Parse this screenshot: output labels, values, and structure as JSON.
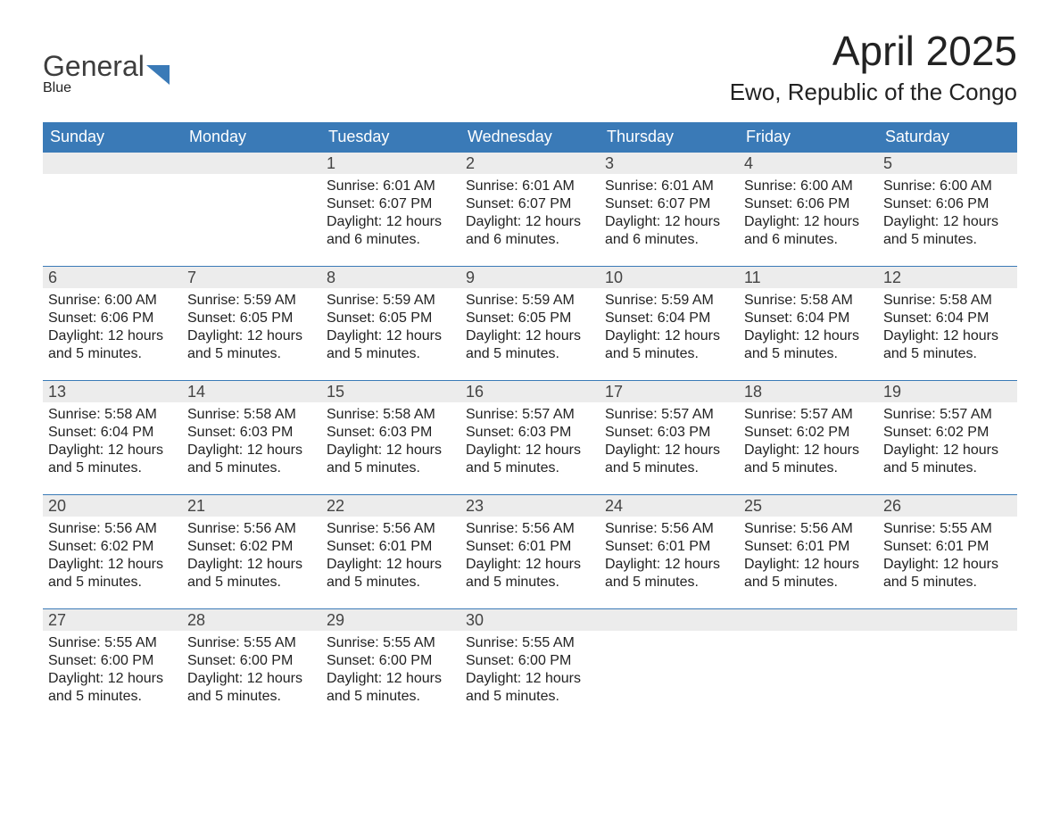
{
  "brand": {
    "name1": "General",
    "name2": "Blue",
    "accent": "#3a7ab7"
  },
  "title": "April 2025",
  "location": "Ewo, Republic of the Congo",
  "colors": {
    "header_bg": "#3a7ab7",
    "header_fg": "#ffffff",
    "daynum_bg": "#ececec",
    "row_border": "#3a7ab7",
    "page_bg": "#ffffff",
    "text": "#222222"
  },
  "typography": {
    "title_fontsize": 46,
    "location_fontsize": 26,
    "dayhdr_fontsize": 18,
    "daynum_fontsize": 18,
    "body_fontsize": 16
  },
  "layout": {
    "columns": 7,
    "rows": 5,
    "first_day_col": 2
  },
  "day_headers": [
    "Sunday",
    "Monday",
    "Tuesday",
    "Wednesday",
    "Thursday",
    "Friday",
    "Saturday"
  ],
  "labels": {
    "sunrise": "Sunrise: ",
    "sunset": "Sunset: ",
    "daylight_prefix": "Daylight: ",
    "daylight_joiner": " and ",
    "daylight_suffix": "."
  },
  "weeks": [
    [
      {
        "n": ""
      },
      {
        "n": ""
      },
      {
        "n": "1",
        "sr": "6:01 AM",
        "ss": "6:07 PM",
        "dh": "12 hours",
        "dm": "6 minutes"
      },
      {
        "n": "2",
        "sr": "6:01 AM",
        "ss": "6:07 PM",
        "dh": "12 hours",
        "dm": "6 minutes"
      },
      {
        "n": "3",
        "sr": "6:01 AM",
        "ss": "6:07 PM",
        "dh": "12 hours",
        "dm": "6 minutes"
      },
      {
        "n": "4",
        "sr": "6:00 AM",
        "ss": "6:06 PM",
        "dh": "12 hours",
        "dm": "6 minutes"
      },
      {
        "n": "5",
        "sr": "6:00 AM",
        "ss": "6:06 PM",
        "dh": "12 hours",
        "dm": "5 minutes"
      }
    ],
    [
      {
        "n": "6",
        "sr": "6:00 AM",
        "ss": "6:06 PM",
        "dh": "12 hours",
        "dm": "5 minutes"
      },
      {
        "n": "7",
        "sr": "5:59 AM",
        "ss": "6:05 PM",
        "dh": "12 hours",
        "dm": "5 minutes"
      },
      {
        "n": "8",
        "sr": "5:59 AM",
        "ss": "6:05 PM",
        "dh": "12 hours",
        "dm": "5 minutes"
      },
      {
        "n": "9",
        "sr": "5:59 AM",
        "ss": "6:05 PM",
        "dh": "12 hours",
        "dm": "5 minutes"
      },
      {
        "n": "10",
        "sr": "5:59 AM",
        "ss": "6:04 PM",
        "dh": "12 hours",
        "dm": "5 minutes"
      },
      {
        "n": "11",
        "sr": "5:58 AM",
        "ss": "6:04 PM",
        "dh": "12 hours",
        "dm": "5 minutes"
      },
      {
        "n": "12",
        "sr": "5:58 AM",
        "ss": "6:04 PM",
        "dh": "12 hours",
        "dm": "5 minutes"
      }
    ],
    [
      {
        "n": "13",
        "sr": "5:58 AM",
        "ss": "6:04 PM",
        "dh": "12 hours",
        "dm": "5 minutes"
      },
      {
        "n": "14",
        "sr": "5:58 AM",
        "ss": "6:03 PM",
        "dh": "12 hours",
        "dm": "5 minutes"
      },
      {
        "n": "15",
        "sr": "5:58 AM",
        "ss": "6:03 PM",
        "dh": "12 hours",
        "dm": "5 minutes"
      },
      {
        "n": "16",
        "sr": "5:57 AM",
        "ss": "6:03 PM",
        "dh": "12 hours",
        "dm": "5 minutes"
      },
      {
        "n": "17",
        "sr": "5:57 AM",
        "ss": "6:03 PM",
        "dh": "12 hours",
        "dm": "5 minutes"
      },
      {
        "n": "18",
        "sr": "5:57 AM",
        "ss": "6:02 PM",
        "dh": "12 hours",
        "dm": "5 minutes"
      },
      {
        "n": "19",
        "sr": "5:57 AM",
        "ss": "6:02 PM",
        "dh": "12 hours",
        "dm": "5 minutes"
      }
    ],
    [
      {
        "n": "20",
        "sr": "5:56 AM",
        "ss": "6:02 PM",
        "dh": "12 hours",
        "dm": "5 minutes"
      },
      {
        "n": "21",
        "sr": "5:56 AM",
        "ss": "6:02 PM",
        "dh": "12 hours",
        "dm": "5 minutes"
      },
      {
        "n": "22",
        "sr": "5:56 AM",
        "ss": "6:01 PM",
        "dh": "12 hours",
        "dm": "5 minutes"
      },
      {
        "n": "23",
        "sr": "5:56 AM",
        "ss": "6:01 PM",
        "dh": "12 hours",
        "dm": "5 minutes"
      },
      {
        "n": "24",
        "sr": "5:56 AM",
        "ss": "6:01 PM",
        "dh": "12 hours",
        "dm": "5 minutes"
      },
      {
        "n": "25",
        "sr": "5:56 AM",
        "ss": "6:01 PM",
        "dh": "12 hours",
        "dm": "5 minutes"
      },
      {
        "n": "26",
        "sr": "5:55 AM",
        "ss": "6:01 PM",
        "dh": "12 hours",
        "dm": "5 minutes"
      }
    ],
    [
      {
        "n": "27",
        "sr": "5:55 AM",
        "ss": "6:00 PM",
        "dh": "12 hours",
        "dm": "5 minutes"
      },
      {
        "n": "28",
        "sr": "5:55 AM",
        "ss": "6:00 PM",
        "dh": "12 hours",
        "dm": "5 minutes"
      },
      {
        "n": "29",
        "sr": "5:55 AM",
        "ss": "6:00 PM",
        "dh": "12 hours",
        "dm": "5 minutes"
      },
      {
        "n": "30",
        "sr": "5:55 AM",
        "ss": "6:00 PM",
        "dh": "12 hours",
        "dm": "5 minutes"
      },
      {
        "n": ""
      },
      {
        "n": ""
      },
      {
        "n": ""
      }
    ]
  ]
}
